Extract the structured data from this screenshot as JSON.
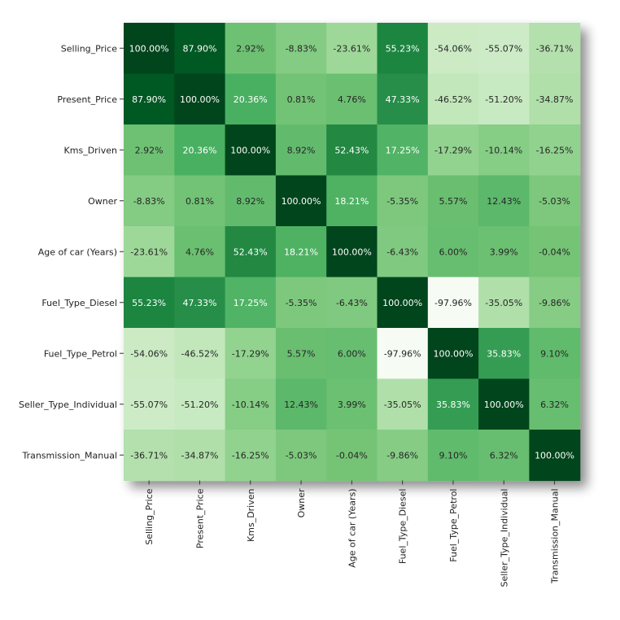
{
  "chart_data": {
    "type": "heatmap",
    "title": "",
    "xlabel": "",
    "ylabel": "",
    "colormap": "Greens",
    "value_range": [
      -100,
      100
    ],
    "value_format": "percent, 2 decimals",
    "rows": [
      "Selling_Price",
      "Present_Price",
      "Kms_Driven",
      "Owner",
      "Age of car (Years)",
      "Fuel_Type_Diesel",
      "Fuel_Type_Petrol",
      "Seller_Type_Individual",
      "Transmission_Manual"
    ],
    "columns": [
      "Selling_Price",
      "Present_Price",
      "Kms_Driven",
      "Owner",
      "Age of car (Years)",
      "Fuel_Type_Diesel",
      "Fuel_Type_Petrol",
      "Seller_Type_Individual",
      "Transmission_Manual"
    ],
    "values": [
      [
        100.0,
        87.9,
        2.92,
        -8.83,
        -23.61,
        55.23,
        -54.06,
        -55.07,
        -36.71
      ],
      [
        87.9,
        100.0,
        20.36,
        0.81,
        4.76,
        47.33,
        -46.52,
        -51.2,
        -34.87
      ],
      [
        2.92,
        20.36,
        100.0,
        8.92,
        52.43,
        17.25,
        -17.29,
        -10.14,
        -16.25
      ],
      [
        -8.83,
        0.81,
        8.92,
        100.0,
        18.21,
        -5.35,
        5.57,
        12.43,
        -5.03
      ],
      [
        -23.61,
        4.76,
        52.43,
        18.21,
        100.0,
        -6.43,
        6.0,
        3.99,
        -0.04
      ],
      [
        55.23,
        47.33,
        17.25,
        -5.35,
        -6.43,
        100.0,
        -97.96,
        -35.05,
        -9.86
      ],
      [
        -54.06,
        -46.52,
        -17.29,
        5.57,
        6.0,
        -97.96,
        100.0,
        35.83,
        9.1
      ],
      [
        -55.07,
        -51.2,
        -10.14,
        12.43,
        3.99,
        -35.05,
        35.83,
        100.0,
        6.32
      ],
      [
        -36.71,
        -34.87,
        -16.25,
        -5.03,
        -0.04,
        -9.86,
        9.1,
        6.32,
        100.0
      ]
    ],
    "cell_labels": [
      [
        "100.00%",
        "87.90%",
        "2.92%",
        "-8.83%",
        "-23.61%",
        "55.23%",
        "-54.06%",
        "-55.07%",
        "-36.71%"
      ],
      [
        "87.90%",
        "100.00%",
        "20.36%",
        "0.81%",
        "4.76%",
        "47.33%",
        "-46.52%",
        "-51.20%",
        "-34.87%"
      ],
      [
        "2.92%",
        "20.36%",
        "100.00%",
        "8.92%",
        "52.43%",
        "17.25%",
        "-17.29%",
        "-10.14%",
        "-16.25%"
      ],
      [
        "-8.83%",
        "0.81%",
        "8.92%",
        "100.00%",
        "18.21%",
        "-5.35%",
        "5.57%",
        "12.43%",
        "-5.03%"
      ],
      [
        "-23.61%",
        "4.76%",
        "52.43%",
        "18.21%",
        "100.00%",
        "-6.43%",
        "6.00%",
        "3.99%",
        "-0.04%"
      ],
      [
        "55.23%",
        "47.33%",
        "17.25%",
        "-5.35%",
        "-6.43%",
        "100.00%",
        "-97.96%",
        "-35.05%",
        "-9.86%"
      ],
      [
        "-54.06%",
        "-46.52%",
        "-17.29%",
        "5.57%",
        "6.00%",
        "-97.96%",
        "100.00%",
        "35.83%",
        "9.10%"
      ],
      [
        "-55.07%",
        "-51.20%",
        "-10.14%",
        "12.43%",
        "3.99%",
        "-35.05%",
        "35.83%",
        "100.00%",
        "6.32%"
      ],
      [
        "-36.71%",
        "-34.87%",
        "-16.25%",
        "-5.03%",
        "-0.04%",
        "-9.86%",
        "9.10%",
        "6.32%",
        "100.00%"
      ]
    ],
    "legend": "none",
    "grid": false
  }
}
